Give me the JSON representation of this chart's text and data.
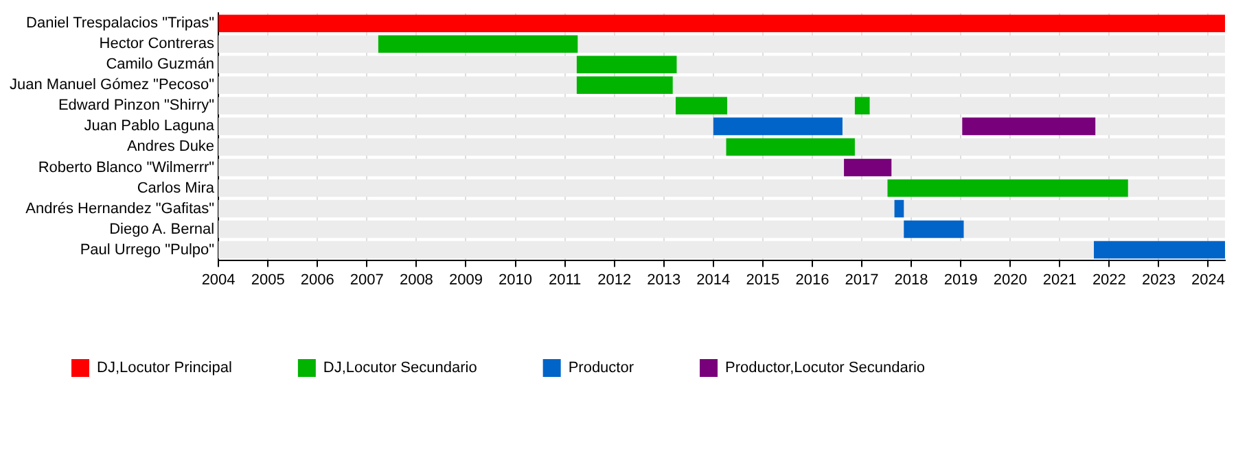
{
  "chart_data": {
    "type": "bar",
    "orientation": "horizontal",
    "categories": [
      "Daniel Trespalacios \"Tripas\"",
      "Hector Contreras",
      "Camilo Guzmán",
      "Juan Manuel Gómez \"Pecoso\"",
      "Edward Pinzon \"Shirry\"",
      "Juan Pablo Laguna",
      "Andres Duke",
      "Roberto Blanco \"Wilmerrr\"",
      "Carlos Mira",
      "Andrés Hernandez \"Gafitas\"",
      "Diego A. Bernal",
      "Paul Urrego \"Pulpo\""
    ],
    "series": [
      {
        "name": "DJ,Locutor Principal",
        "color": "#ff0000",
        "base": [
          2004,
          null,
          null,
          null,
          null,
          null,
          null,
          null,
          null,
          null,
          null,
          null
        ],
        "values": [
          20.34,
          null,
          null,
          null,
          null,
          null,
          null,
          null,
          null,
          null,
          null,
          null
        ]
      },
      {
        "name": "DJ,Locutor Secundario",
        "color": "#00b400",
        "base": [
          null,
          2007.23,
          2011.24,
          2011.24,
          2013.24,
          null,
          2014.26,
          null,
          2017.52,
          null,
          null,
          null
        ],
        "values": [
          null,
          4.03,
          2.02,
          1.94,
          1.04,
          null,
          2.6,
          null,
          4.86,
          null,
          null,
          null
        ]
      },
      {
        "color": "#00b400",
        "base": [
          null,
          null,
          null,
          null,
          2016.86,
          null,
          null,
          null,
          null,
          null,
          null,
          null
        ],
        "values": [
          null,
          null,
          null,
          null,
          0.3,
          null,
          null,
          null,
          null,
          null,
          null,
          null
        ]
      },
      {
        "name": "Productor",
        "color": "#0064c8",
        "base": [
          null,
          null,
          null,
          null,
          null,
          2014.0,
          null,
          null,
          null,
          2017.66,
          2017.85,
          2021.69
        ],
        "values": [
          null,
          null,
          null,
          null,
          null,
          2.61,
          null,
          null,
          null,
          0.19,
          1.21,
          2.65
        ]
      },
      {
        "name": "Productor,Locutor Secundario",
        "color": "#78007a",
        "base": [
          null,
          null,
          null,
          null,
          null,
          2019.03,
          null,
          2016.64,
          null,
          null,
          null,
          null
        ],
        "values": [
          null,
          null,
          null,
          null,
          null,
          2.69,
          null,
          0.96,
          null,
          null,
          null,
          null
        ]
      }
    ],
    "xlim": [
      2004,
      2024.34
    ],
    "xticks": [
      2004,
      2005,
      2006,
      2007,
      2008,
      2009,
      2010,
      2011,
      2012,
      2013,
      2014,
      2015,
      2016,
      2017,
      2018,
      2019,
      2020,
      2021,
      2022,
      2023,
      2024
    ],
    "grid": "x",
    "legend": "bottom left"
  }
}
